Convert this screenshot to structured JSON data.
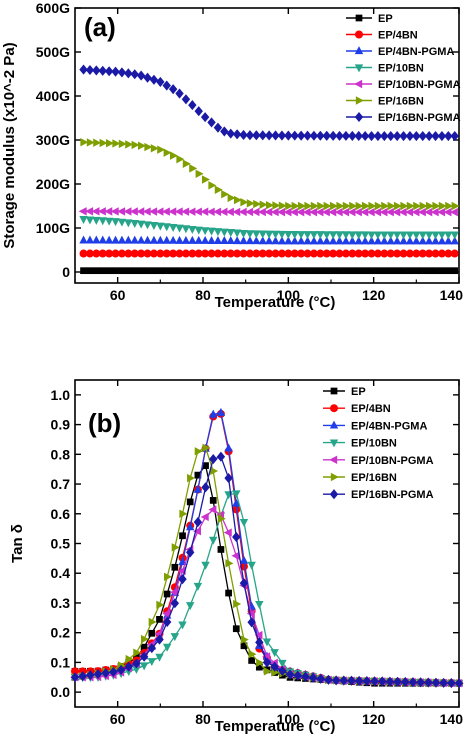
{
  "chart_data": [
    {
      "type": "scatter",
      "panel_label": "(a)",
      "xlabel": "Temperature (°C)",
      "ylabel": "Storage modulus (x10^-2 Pa)",
      "xlim": [
        50,
        140
      ],
      "ylim": [
        -25,
        600
      ],
      "x_ticks": [
        60,
        80,
        100,
        120,
        140
      ],
      "x_tick_labels": [
        "60",
        "80",
        "100",
        "120",
        "140"
      ],
      "y_ticks": [
        0,
        100,
        200,
        300,
        400,
        500,
        600
      ],
      "y_tick_labels": [
        "0",
        "100G",
        "200G",
        "300G",
        "400G",
        "500G",
        "600G"
      ],
      "legend_position": "top-right",
      "grid": false,
      "series": [
        {
          "name": "EP",
          "color": "#000000",
          "marker": "square",
          "points": [
            [
              52,
              3
            ],
            [
              140,
              3
            ]
          ]
        },
        {
          "name": "EP/4BN",
          "color": "#ff0000",
          "marker": "circle",
          "points": [
            [
              52,
              42
            ],
            [
              140,
              42
            ]
          ]
        },
        {
          "name": "EP/4BN-PGMA",
          "color": "#1f3ee8",
          "marker": "triangle-up",
          "points": [
            [
              52,
              72
            ],
            [
              80,
              71
            ],
            [
              100,
              70
            ],
            [
              140,
              70
            ]
          ]
        },
        {
          "name": "EP/10BN",
          "color": "#26a58a",
          "marker": "triangle-down",
          "points": [
            [
              52,
              120
            ],
            [
              60,
              115
            ],
            [
              70,
              105
            ],
            [
              80,
              95
            ],
            [
              90,
              88
            ],
            [
              100,
              86
            ],
            [
              120,
              85
            ],
            [
              140,
              85
            ]
          ]
        },
        {
          "name": "EP/10BN-PGMA",
          "color": "#cc33cc",
          "marker": "triangle-left",
          "points": [
            [
              52,
              138
            ],
            [
              80,
              137
            ],
            [
              100,
              136
            ],
            [
              140,
              136
            ]
          ]
        },
        {
          "name": "EP/16BN",
          "color": "#7f9f00",
          "marker": "triangle-right",
          "points": [
            [
              52,
              295
            ],
            [
              60,
              292
            ],
            [
              65,
              288
            ],
            [
              70,
              278
            ],
            [
              74,
              260
            ],
            [
              78,
              232
            ],
            [
              82,
              197
            ],
            [
              86,
              170
            ],
            [
              90,
              157
            ],
            [
              95,
              152
            ],
            [
              100,
              150
            ],
            [
              120,
              150
            ],
            [
              140,
              150
            ]
          ]
        },
        {
          "name": "EP/16BN-PGMA",
          "color": "#1a1aa6",
          "marker": "diamond",
          "points": [
            [
              52,
              460
            ],
            [
              60,
              455
            ],
            [
              65,
              448
            ],
            [
              70,
              432
            ],
            [
              74,
              410
            ],
            [
              78,
              375
            ],
            [
              80,
              356
            ],
            [
              82,
              340
            ],
            [
              84,
              324
            ],
            [
              86,
              315
            ],
            [
              90,
              311
            ],
            [
              100,
              310
            ],
            [
              120,
              309
            ],
            [
              140,
              309
            ]
          ]
        }
      ]
    },
    {
      "type": "line",
      "panel_label": "(b)",
      "xlabel": "Temperature (°C)",
      "ylabel": "Tan δ",
      "xlim": [
        50,
        140
      ],
      "ylim": [
        -0.05,
        1.05
      ],
      "x_ticks": [
        60,
        80,
        100,
        120,
        140
      ],
      "x_tick_labels": [
        "60",
        "80",
        "100",
        "120",
        "140"
      ],
      "y_ticks": [
        0.0,
        0.1,
        0.2,
        0.3,
        0.4,
        0.5,
        0.6,
        0.7,
        0.8,
        0.9,
        1.0
      ],
      "y_tick_labels": [
        "0.0",
        "0.1",
        "0.2",
        "0.3",
        "0.4",
        "0.5",
        "0.6",
        "0.7",
        "0.8",
        "0.9",
        "1.0"
      ],
      "legend_position": "top-right",
      "grid": false,
      "series": [
        {
          "name": "EP",
          "color": "#000000",
          "marker": "square",
          "points": [
            [
              50,
              0.07
            ],
            [
              55,
              0.07
            ],
            [
              60,
              0.08
            ],
            [
              65,
              0.12
            ],
            [
              70,
              0.25
            ],
            [
              74,
              0.45
            ],
            [
              77,
              0.64
            ],
            [
              79,
              0.74
            ],
            [
              80,
              0.78
            ],
            [
              81,
              0.75
            ],
            [
              83,
              0.6
            ],
            [
              85,
              0.4
            ],
            [
              88,
              0.2
            ],
            [
              92,
              0.09
            ],
            [
              100,
              0.05
            ],
            [
              120,
              0.03
            ],
            [
              140,
              0.03
            ]
          ]
        },
        {
          "name": "EP/4BN",
          "color": "#ff0000",
          "marker": "circle",
          "points": [
            [
              50,
              0.07
            ],
            [
              55,
              0.07
            ],
            [
              60,
              0.08
            ],
            [
              65,
              0.11
            ],
            [
              70,
              0.2
            ],
            [
              74,
              0.38
            ],
            [
              78,
              0.62
            ],
            [
              81,
              0.85
            ],
            [
              83,
              0.96
            ],
            [
              85,
              0.92
            ],
            [
              87,
              0.7
            ],
            [
              90,
              0.38
            ],
            [
              93,
              0.15
            ],
            [
              97,
              0.08
            ],
            [
              110,
              0.04
            ],
            [
              140,
              0.03
            ]
          ]
        },
        {
          "name": "EP/4BN-PGMA",
          "color": "#1f3ee8",
          "marker": "triangle-up",
          "points": [
            [
              50,
              0.05
            ],
            [
              55,
              0.06
            ],
            [
              60,
              0.07
            ],
            [
              65,
              0.1
            ],
            [
              70,
              0.19
            ],
            [
              74,
              0.36
            ],
            [
              78,
              0.62
            ],
            [
              81,
              0.85
            ],
            [
              83,
              0.97
            ],
            [
              85,
              0.92
            ],
            [
              87,
              0.72
            ],
            [
              90,
              0.4
            ],
            [
              93,
              0.16
            ],
            [
              97,
              0.08
            ],
            [
              110,
              0.04
            ],
            [
              140,
              0.03
            ]
          ]
        },
        {
          "name": "EP/10BN",
          "color": "#26a58a",
          "marker": "triangle-down",
          "points": [
            [
              50,
              0.05
            ],
            [
              55,
              0.05
            ],
            [
              60,
              0.06
            ],
            [
              65,
              0.08
            ],
            [
              70,
              0.12
            ],
            [
              75,
              0.22
            ],
            [
              80,
              0.4
            ],
            [
              83,
              0.54
            ],
            [
              85,
              0.63
            ],
            [
              87,
              0.7
            ],
            [
              89,
              0.62
            ],
            [
              92,
              0.38
            ],
            [
              95,
              0.17
            ],
            [
              100,
              0.07
            ],
            [
              110,
              0.04
            ],
            [
              140,
              0.03
            ]
          ]
        },
        {
          "name": "EP/10BN-PGMA",
          "color": "#cc33cc",
          "marker": "triangle-left",
          "points": [
            [
              50,
              0.05
            ],
            [
              55,
              0.05
            ],
            [
              60,
              0.06
            ],
            [
              65,
              0.1
            ],
            [
              70,
              0.2
            ],
            [
              74,
              0.36
            ],
            [
              78,
              0.52
            ],
            [
              81,
              0.6
            ],
            [
              83,
              0.62
            ],
            [
              85,
              0.58
            ],
            [
              88,
              0.45
            ],
            [
              91,
              0.28
            ],
            [
              95,
              0.12
            ],
            [
              100,
              0.06
            ],
            [
              110,
              0.04
            ],
            [
              140,
              0.03
            ]
          ]
        },
        {
          "name": "EP/16BN",
          "color": "#7f9f00",
          "marker": "triangle-right",
          "points": [
            [
              50,
              0.05
            ],
            [
              55,
              0.06
            ],
            [
              60,
              0.08
            ],
            [
              65,
              0.14
            ],
            [
              70,
              0.3
            ],
            [
              74,
              0.52
            ],
            [
              77,
              0.72
            ],
            [
              79,
              0.82
            ],
            [
              80,
              0.84
            ],
            [
              82,
              0.78
            ],
            [
              84,
              0.6
            ],
            [
              87,
              0.35
            ],
            [
              90,
              0.15
            ],
            [
              95,
              0.07
            ],
            [
              110,
              0.04
            ],
            [
              140,
              0.03
            ]
          ]
        },
        {
          "name": "EP/16BN-PGMA",
          "color": "#1a1aa6",
          "marker": "diamond",
          "points": [
            [
              50,
              0.05
            ],
            [
              55,
              0.06
            ],
            [
              60,
              0.07
            ],
            [
              65,
              0.1
            ],
            [
              70,
              0.18
            ],
            [
              74,
              0.32
            ],
            [
              78,
              0.52
            ],
            [
              80,
              0.65
            ],
            [
              82,
              0.78
            ],
            [
              84,
              0.8
            ],
            [
              86,
              0.72
            ],
            [
              88,
              0.5
            ],
            [
              91,
              0.25
            ],
            [
              95,
              0.1
            ],
            [
              100,
              0.06
            ],
            [
              110,
              0.04
            ],
            [
              140,
              0.03
            ]
          ]
        }
      ]
    }
  ]
}
